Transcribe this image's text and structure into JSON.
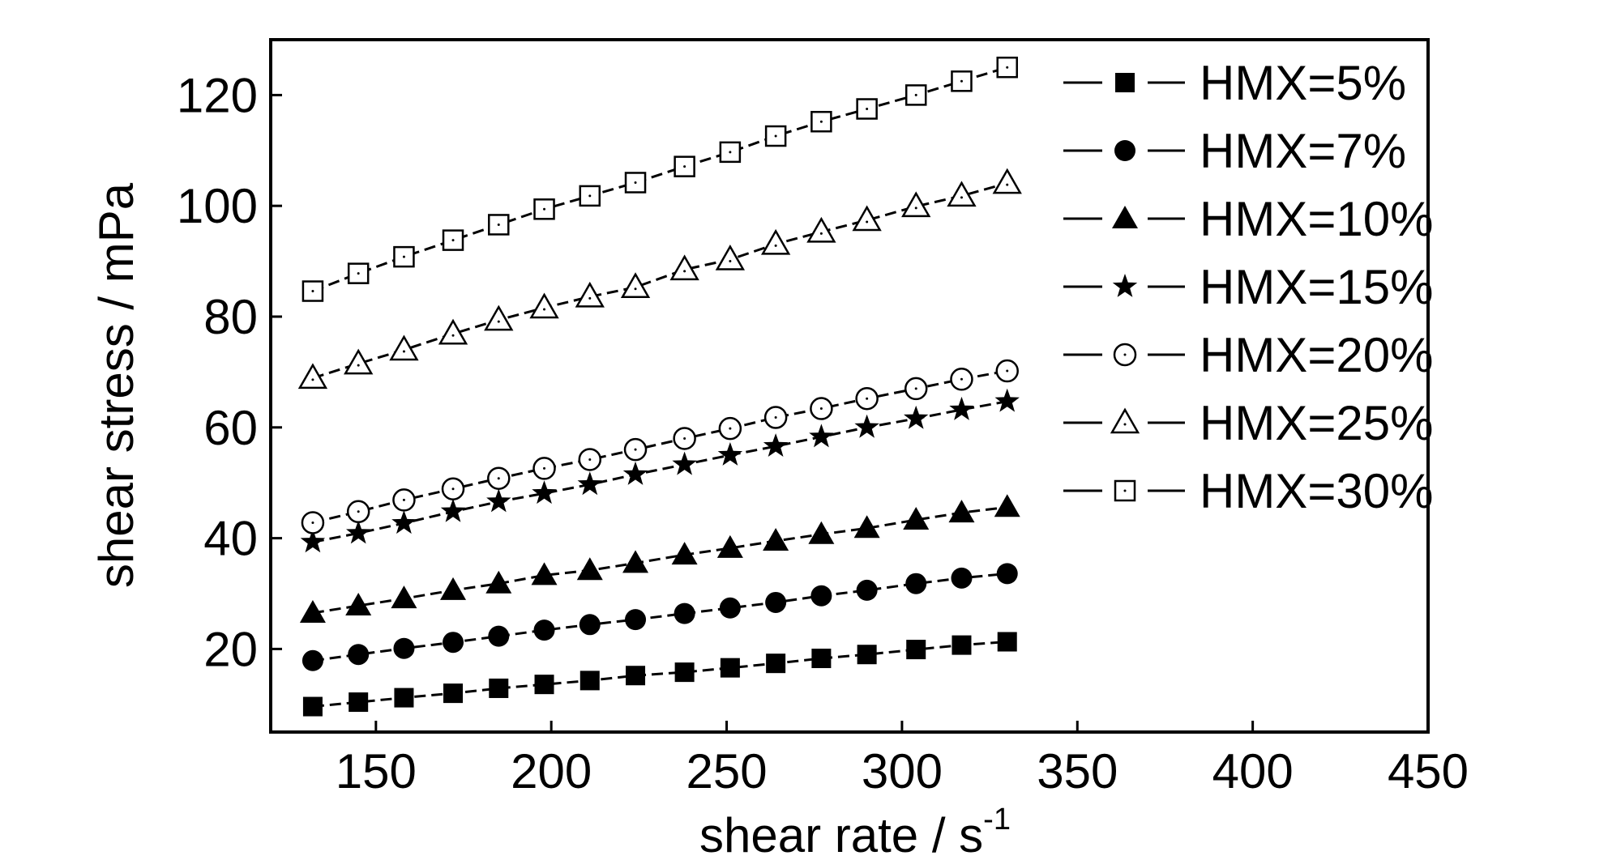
{
  "chart_data": {
    "type": "line",
    "title": "",
    "xlabel": "shear rate / s",
    "xlabel_sup": "-1",
    "ylabel": "shear stress / mPa",
    "xlim": [
      120,
      450
    ],
    "ylim": [
      5,
      130
    ],
    "xticks": [
      150,
      200,
      250,
      300,
      350,
      400,
      450
    ],
    "yticks": [
      20,
      40,
      60,
      80,
      100,
      120
    ],
    "grid": false,
    "legend_position": "top-right",
    "x": [
      132,
      145,
      158,
      172,
      185,
      198,
      211,
      224,
      238,
      251,
      264,
      277,
      290,
      304,
      317,
      330
    ],
    "series": [
      {
        "name": "HMX=5%",
        "marker": "square-filled",
        "values": [
          9.6,
          10.4,
          11.2,
          12.0,
          12.9,
          13.6,
          14.3,
          15.2,
          15.8,
          16.6,
          17.4,
          18.3,
          19.0,
          19.9,
          20.7,
          21.3
        ]
      },
      {
        "name": "HMX=7%",
        "marker": "circle-filled",
        "values": [
          17.9,
          19.0,
          20.1,
          21.2,
          22.3,
          23.4,
          24.4,
          25.3,
          26.4,
          27.4,
          28.4,
          29.6,
          30.6,
          31.8,
          32.8,
          33.6
        ]
      },
      {
        "name": "HMX=10%",
        "marker": "triangle-filled",
        "values": [
          26.5,
          27.8,
          29.1,
          30.6,
          31.8,
          33.3,
          34.2,
          35.5,
          37.0,
          38.2,
          39.5,
          40.7,
          41.8,
          43.3,
          44.6,
          45.6
        ]
      },
      {
        "name": "HMX=15%",
        "marker": "star-filled",
        "values": [
          39.3,
          40.9,
          42.7,
          44.8,
          46.6,
          48.1,
          49.7,
          51.5,
          53.3,
          55.0,
          56.6,
          58.3,
          60.0,
          61.6,
          63.2,
          64.7
        ]
      },
      {
        "name": "HMX=20%",
        "marker": "circle-open",
        "values": [
          42.8,
          44.8,
          46.9,
          48.9,
          50.8,
          52.6,
          54.2,
          56.0,
          58.0,
          59.8,
          61.8,
          63.4,
          65.2,
          67.0,
          68.7,
          70.2
        ]
      },
      {
        "name": "HMX=25%",
        "marker": "triangle-open",
        "values": [
          68.9,
          71.5,
          74.0,
          76.9,
          79.4,
          81.6,
          83.6,
          85.3,
          88.5,
          90.3,
          93.1,
          95.3,
          97.4,
          99.9,
          101.8,
          104.1
        ]
      },
      {
        "name": "HMX=30%",
        "marker": "square-open",
        "values": [
          84.6,
          87.8,
          90.8,
          93.8,
          96.6,
          99.4,
          101.8,
          104.2,
          107.1,
          109.7,
          112.6,
          115.2,
          117.5,
          120.0,
          122.5,
          125.0
        ]
      }
    ],
    "colors": {
      "line": "#000000",
      "background": "#ffffff"
    }
  }
}
